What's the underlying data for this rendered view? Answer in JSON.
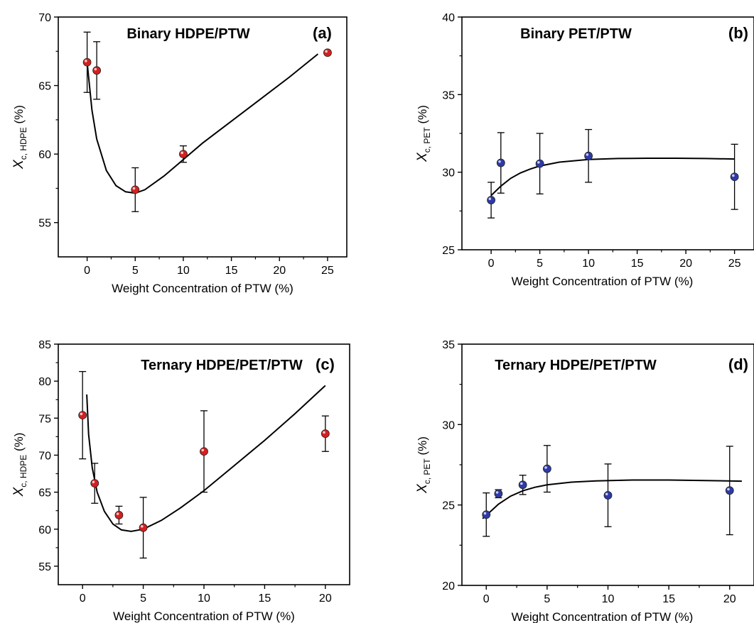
{
  "colors": {
    "hdpe_marker": "#d42020",
    "pet_marker": "#2e3aa8",
    "curve": "#000000",
    "axes": "#000000"
  },
  "chart_data": [
    {
      "type": "scatter",
      "title": "Binary HDPE/PTW",
      "letter": "(a)",
      "xlabel": "Weight Concentration of PTW  (%)",
      "ylabel": {
        "main": "X",
        "sub": "c, HDPE",
        "unit": " (%)"
      },
      "xlim": [
        -3,
        27
      ],
      "ylim": [
        52.5,
        70
      ],
      "xticks": [
        0,
        5,
        10,
        15,
        20,
        25
      ],
      "yticks": [
        55,
        60,
        65,
        70
      ],
      "marker_color": "#d42020",
      "series": [
        {
          "points": [
            {
              "x": 0,
              "y": 66.7,
              "err": 2.2
            },
            {
              "x": 1,
              "y": 66.1,
              "err": 2.1
            },
            {
              "x": 5,
              "y": 57.4,
              "err": 1.6
            },
            {
              "x": 10,
              "y": 60.0,
              "err": 0.6
            },
            {
              "x": 25,
              "y": 67.4,
              "err": 0.1
            }
          ],
          "fit": [
            [
              0,
              66.7
            ],
            [
              0.5,
              63.2
            ],
            [
              1,
              61.1
            ],
            [
              2,
              58.8
            ],
            [
              3,
              57.7
            ],
            [
              4,
              57.25
            ],
            [
              5,
              57.15
            ],
            [
              6,
              57.4
            ],
            [
              8,
              58.4
            ],
            [
              10,
              59.6
            ],
            [
              12,
              60.8
            ],
            [
              15,
              62.4
            ],
            [
              18,
              64.0
            ],
            [
              21,
              65.6
            ],
            [
              24,
              67.3
            ]
          ]
        }
      ]
    },
    {
      "type": "scatter",
      "title": "Binary PET/PTW",
      "letter": "(b)",
      "xlabel": "Weight Concentration of PTW  (%)",
      "ylabel": {
        "main": "X",
        "sub": "c, PET",
        "unit": " (%)"
      },
      "xlim": [
        -3,
        27
      ],
      "ylim": [
        25,
        40
      ],
      "xticks": [
        0,
        5,
        10,
        15,
        20,
        25
      ],
      "yticks": [
        25,
        30,
        35,
        40
      ],
      "marker_color": "#2e3aa8",
      "series": [
        {
          "points": [
            {
              "x": 0,
              "y": 28.2,
              "err": 1.15
            },
            {
              "x": 1,
              "y": 30.6,
              "err": 1.95
            },
            {
              "x": 5,
              "y": 30.55,
              "err": 1.95
            },
            {
              "x": 10,
              "y": 31.05,
              "err": 1.7
            },
            {
              "x": 25,
              "y": 29.7,
              "err": 2.1
            }
          ],
          "fit": [
            [
              0,
              28.5
            ],
            [
              1,
              29.1
            ],
            [
              2,
              29.6
            ],
            [
              3,
              29.95
            ],
            [
              4,
              30.2
            ],
            [
              5,
              30.4
            ],
            [
              7,
              30.65
            ],
            [
              10,
              30.82
            ],
            [
              13,
              30.88
            ],
            [
              16,
              30.9
            ],
            [
              19,
              30.9
            ],
            [
              22,
              30.88
            ],
            [
              25,
              30.85
            ]
          ]
        }
      ]
    },
    {
      "type": "scatter",
      "title": "Ternary HDPE/PET/PTW",
      "letter": "(c)",
      "xlabel": "Weight Concentration of PTW  (%)",
      "ylabel": {
        "main": "X",
        "sub": "c, HDPE",
        "unit": " (%)"
      },
      "xlim": [
        -2,
        22
      ],
      "ylim": [
        52.5,
        85
      ],
      "xticks": [
        0,
        5,
        10,
        15,
        20
      ],
      "yticks": [
        55,
        60,
        65,
        70,
        75,
        80,
        85
      ],
      "marker_color": "#d42020",
      "series": [
        {
          "points": [
            {
              "x": 0,
              "y": 75.4,
              "err": 5.9
            },
            {
              "x": 1,
              "y": 66.2,
              "err": 2.7
            },
            {
              "x": 3,
              "y": 61.9,
              "err": 1.2
            },
            {
              "x": 5,
              "y": 60.2,
              "err": 4.1
            },
            {
              "x": 10,
              "y": 70.5,
              "err": 5.5
            },
            {
              "x": 20,
              "y": 72.9,
              "err": 2.4
            }
          ],
          "fit": [
            [
              0.35,
              78.2
            ],
            [
              0.5,
              72.8
            ],
            [
              0.8,
              68.3
            ],
            [
              1.2,
              65.0
            ],
            [
              1.8,
              62.4
            ],
            [
              2.5,
              60.7
            ],
            [
              3.2,
              59.9
            ],
            [
              4.0,
              59.7
            ],
            [
              5.0,
              60.0
            ],
            [
              6.5,
              61.2
            ],
            [
              8.0,
              62.8
            ],
            [
              10.0,
              65.2
            ],
            [
              12.5,
              68.6
            ],
            [
              15.0,
              72.0
            ],
            [
              17.5,
              75.6
            ],
            [
              20.0,
              79.4
            ]
          ]
        }
      ]
    },
    {
      "type": "scatter",
      "title": "Ternary HDPE/PET/PTW",
      "letter": "(d)",
      "xlabel": "Weight Concentration of PTW  (%)",
      "ylabel": {
        "main": "X",
        "sub": "c, PET",
        "unit": " (%)"
      },
      "xlim": [
        -2,
        22
      ],
      "ylim": [
        20,
        35
      ],
      "xticks": [
        0,
        5,
        10,
        15,
        20
      ],
      "yticks": [
        20,
        25,
        30,
        35
      ],
      "marker_color": "#2e3aa8",
      "series": [
        {
          "points": [
            {
              "x": 0,
              "y": 24.4,
              "err": 1.35
            },
            {
              "x": 1,
              "y": 25.7,
              "err": 0.25
            },
            {
              "x": 3,
              "y": 26.25,
              "err": 0.6
            },
            {
              "x": 5,
              "y": 27.25,
              "err": 1.45
            },
            {
              "x": 10,
              "y": 25.6,
              "err": 1.95
            },
            {
              "x": 20,
              "y": 25.9,
              "err": 2.75
            }
          ],
          "fit": [
            [
              -0.3,
              24.15
            ],
            [
              0.5,
              24.7
            ],
            [
              1,
              25.05
            ],
            [
              2,
              25.55
            ],
            [
              3,
              25.88
            ],
            [
              4,
              26.1
            ],
            [
              5,
              26.25
            ],
            [
              7,
              26.42
            ],
            [
              9,
              26.5
            ],
            [
              12,
              26.55
            ],
            [
              15,
              26.55
            ],
            [
              18,
              26.52
            ],
            [
              21,
              26.48
            ]
          ]
        }
      ]
    }
  ]
}
